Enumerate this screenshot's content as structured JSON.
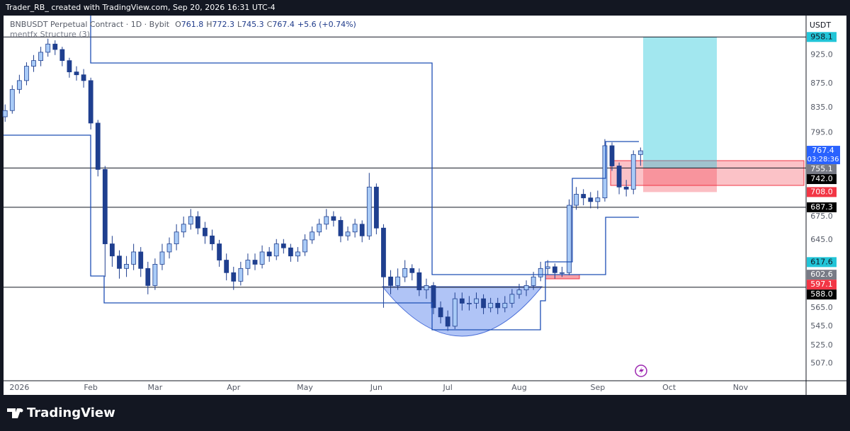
{
  "caption": "Trader_RB_ created with TradingView.com, Sep 20, 2026 16:31 UTC-4",
  "brand": "TradingView",
  "chart_data": {
    "type": "candlestick",
    "symbol": "BNBUSDT Perpetual Contract · 1D · Bybit",
    "ohlc_labels": [
      "O",
      "H",
      "L",
      "C"
    ],
    "change_label": "+5.6 (+0.74%)",
    "indicator": "mentfx Structure (3)",
    "currency": "USDT",
    "countdown": "03:28:36",
    "log_scale": true,
    "grid": false,
    "up_color": "#a9cbf7",
    "down_color": "#1f3f8f",
    "wick_color": "#1f3f8f",
    "last_color": "#2962ff",
    "categories": [
      null,
      null,
      "2026",
      null,
      null,
      null,
      null,
      null,
      null,
      null,
      null,
      null,
      "Feb",
      null,
      null,
      null,
      null,
      null,
      null,
      null,
      null,
      "Mar",
      null,
      null,
      null,
      null,
      null,
      null,
      null,
      null,
      null,
      null,
      "Apr",
      null,
      null,
      null,
      null,
      null,
      null,
      null,
      null,
      null,
      "May",
      null,
      null,
      null,
      null,
      null,
      null,
      null,
      null,
      null,
      "Jun",
      null,
      null,
      null,
      null,
      null,
      null,
      null,
      null,
      null,
      "Jul",
      null,
      null,
      null,
      null,
      null,
      null,
      null,
      null,
      null,
      "Aug",
      null,
      null,
      null,
      null,
      null,
      null,
      null,
      null,
      null,
      null,
      "Sep",
      null,
      null,
      null,
      null,
      null,
      null,
      null,
      null,
      null,
      "Oct",
      null,
      null,
      null,
      null,
      null,
      null,
      null,
      null,
      null,
      "Nov",
      null,
      null,
      null,
      null,
      null,
      null,
      null
    ],
    "open": [
      820,
      830,
      865,
      880,
      905,
      915,
      930,
      945,
      935,
      915,
      895,
      890,
      880,
      810,
      740,
      640,
      625,
      610,
      615,
      630,
      610,
      590,
      615,
      630,
      640,
      655,
      665,
      675,
      660,
      650,
      640,
      620,
      605,
      595,
      610,
      620,
      615,
      630,
      625,
      640,
      635,
      625,
      630,
      645,
      655,
      665,
      675,
      670,
      650,
      655,
      665,
      650,
      715,
      660,
      600,
      590,
      600,
      610,
      605,
      585,
      590,
      565,
      555,
      545,
      575,
      570,
      570,
      575,
      565,
      570,
      565,
      570,
      580,
      585,
      590,
      600,
      610,
      612,
      605,
      605,
      690,
      705,
      700,
      695,
      700,
      775,
      745,
      715,
      712,
      761.8,
      null,
      null,
      null,
      null,
      null,
      null,
      null,
      null,
      null,
      null,
      null,
      null,
      null,
      null,
      null,
      null,
      null,
      null,
      null,
      null,
      null
    ],
    "high": [
      840,
      872,
      890,
      912,
      925,
      940,
      955,
      952,
      940,
      920,
      905,
      900,
      885,
      815,
      745,
      650,
      632,
      625,
      640,
      636,
      618,
      622,
      640,
      648,
      665,
      675,
      685,
      682,
      668,
      658,
      645,
      628,
      612,
      618,
      628,
      628,
      638,
      636,
      646,
      646,
      640,
      636,
      652,
      662,
      672,
      685,
      682,
      675,
      662,
      672,
      670,
      735,
      720,
      665,
      608,
      610,
      620,
      615,
      610,
      598,
      594,
      572,
      562,
      582,
      582,
      578,
      582,
      580,
      576,
      576,
      578,
      586,
      592,
      596,
      606,
      618,
      620,
      616,
      612,
      698,
      715,
      712,
      708,
      710,
      785,
      780,
      750,
      725,
      768,
      772.3,
      null,
      null,
      null,
      null,
      null,
      null,
      null,
      null,
      null,
      null,
      null,
      null,
      null,
      null,
      null,
      null,
      null,
      null,
      null,
      null,
      null
    ],
    "low": [
      812,
      825,
      858,
      872,
      895,
      905,
      922,
      925,
      905,
      885,
      880,
      868,
      800,
      730,
      600,
      612,
      598,
      600,
      608,
      600,
      580,
      585,
      608,
      622,
      632,
      648,
      658,
      652,
      640,
      632,
      612,
      596,
      585,
      590,
      602,
      608,
      610,
      618,
      620,
      628,
      618,
      618,
      625,
      640,
      650,
      658,
      662,
      642,
      644,
      648,
      642,
      645,
      652,
      565,
      580,
      585,
      594,
      596,
      578,
      575,
      558,
      548,
      540,
      542,
      562,
      562,
      564,
      558,
      560,
      558,
      560,
      565,
      575,
      578,
      585,
      595,
      603,
      598,
      600,
      602,
      684,
      690,
      686,
      685,
      695,
      738,
      705,
      702,
      705,
      745.3,
      null,
      null,
      null,
      null,
      null,
      null,
      null,
      null,
      null,
      null,
      null,
      null,
      null,
      null,
      null,
      null,
      null,
      null,
      null,
      null,
      null
    ],
    "close": [
      830,
      865,
      880,
      905,
      915,
      930,
      945,
      935,
      915,
      895,
      890,
      880,
      810,
      740,
      640,
      625,
      610,
      615,
      630,
      610,
      590,
      615,
      630,
      640,
      655,
      665,
      675,
      660,
      650,
      640,
      620,
      605,
      595,
      610,
      620,
      615,
      630,
      625,
      640,
      635,
      625,
      630,
      645,
      655,
      665,
      675,
      670,
      650,
      655,
      665,
      650,
      715,
      660,
      600,
      590,
      600,
      610,
      605,
      585,
      590,
      565,
      555,
      545,
      575,
      570,
      570,
      575,
      565,
      570,
      565,
      570,
      580,
      585,
      590,
      600,
      610,
      612,
      605,
      605,
      690,
      705,
      700,
      695,
      700,
      775,
      745,
      715,
      712,
      761.8,
      767.4,
      null,
      null,
      null,
      null,
      null,
      null,
      null,
      null,
      null,
      null,
      null,
      null,
      null,
      null,
      null,
      null,
      null,
      null,
      null,
      null,
      null
    ],
    "ylim": [
      490,
      999
    ],
    "yticks": [
      {
        "value": 925,
        "label": "925.0"
      },
      {
        "value": 875,
        "label": "875.0"
      },
      {
        "value": 835,
        "label": "835.0"
      },
      {
        "value": 795,
        "label": "795.0"
      },
      {
        "value": 675,
        "label": "675.0"
      },
      {
        "value": 645,
        "label": "645.0"
      },
      {
        "value": 565,
        "label": "565.0"
      },
      {
        "value": 545,
        "label": "545.0"
      },
      {
        "value": 525,
        "label": "525.0"
      },
      {
        "value": 507,
        "label": "507.0"
      }
    ],
    "price_tags": [
      {
        "value": 958.1,
        "color": "#22c5d8",
        "text_color": "#131722",
        "line": true
      },
      {
        "value": 755.1,
        "color": "#787b86",
        "text_color": "#ffffff"
      },
      {
        "value": 742,
        "label": "742.0",
        "color": "#000000",
        "text_color": "#ffffff",
        "line": true
      },
      {
        "value": 708,
        "label": "708.0",
        "color": "#f23645",
        "text_color": "#ffffff"
      },
      {
        "value": 687.3,
        "color": "#000000",
        "text_color": "#ffffff",
        "line": true
      },
      {
        "value": 617.6,
        "color": "#22c5d8",
        "text_color": "#131722"
      },
      {
        "value": 602.6,
        "color": "#787b86",
        "text_color": "#ffffff"
      },
      {
        "value": 597.1,
        "color": "#f23645",
        "text_color": "#ffffff"
      },
      {
        "value": 588,
        "label": "588.0",
        "color": "#000000",
        "text_color": "#ffffff",
        "line": true
      }
    ]
  }
}
